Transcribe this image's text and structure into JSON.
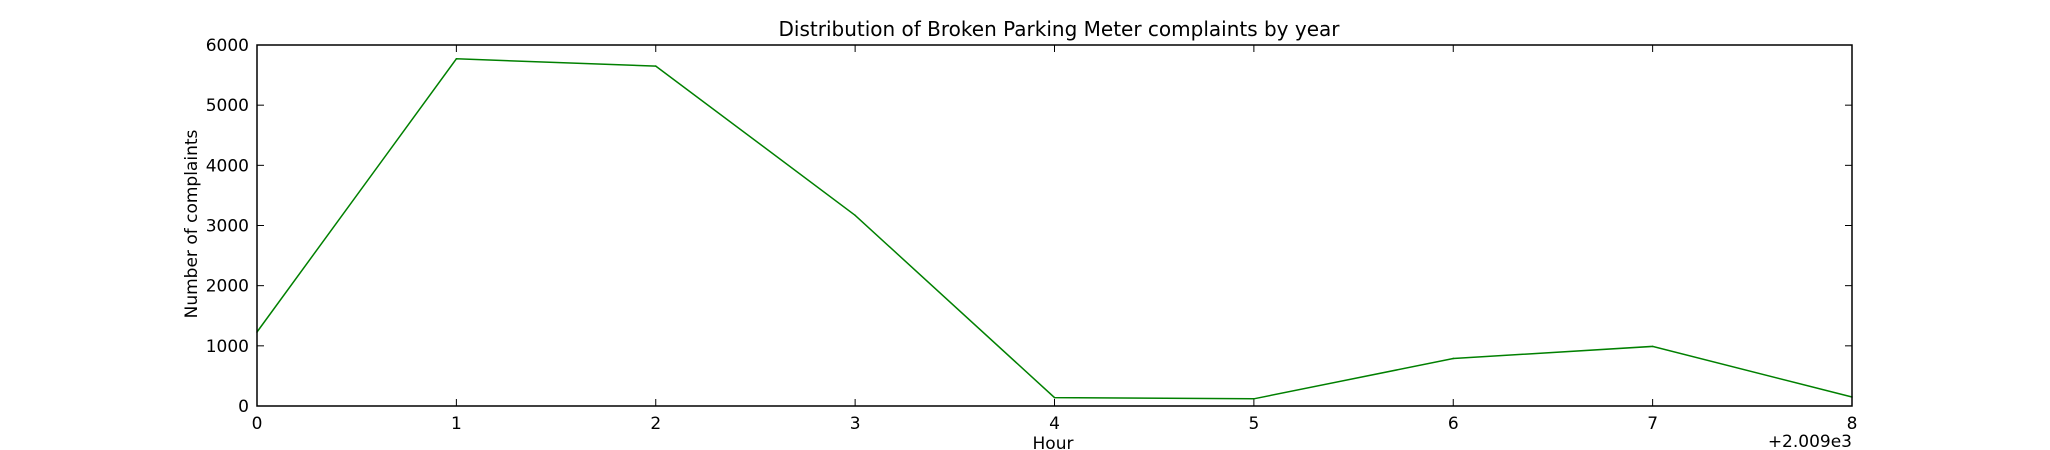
{
  "chart_data": {
    "type": "line",
    "title": "Distribution of  Broken Parking Meter complaints by year",
    "xlabel": "Hour",
    "ylabel": "Number of complaints",
    "x_offset_label": "+2.009e3",
    "x": [
      0,
      1,
      2,
      3,
      4,
      5,
      6,
      7,
      8
    ],
    "xticks": [
      "0",
      "1",
      "2",
      "3",
      "4",
      "5",
      "6",
      "7",
      "8"
    ],
    "xlim": [
      0,
      8
    ],
    "yticks": [
      "0",
      "1000",
      "2000",
      "3000",
      "4000",
      "5000",
      "6000"
    ],
    "ylim": [
      0,
      6000
    ],
    "grid": false,
    "legend": "none",
    "series": [
      {
        "color": "#008000",
        "values": [
          1230,
          5770,
          5650,
          3170,
          140,
          120,
          790,
          990,
          150
        ]
      }
    ]
  }
}
